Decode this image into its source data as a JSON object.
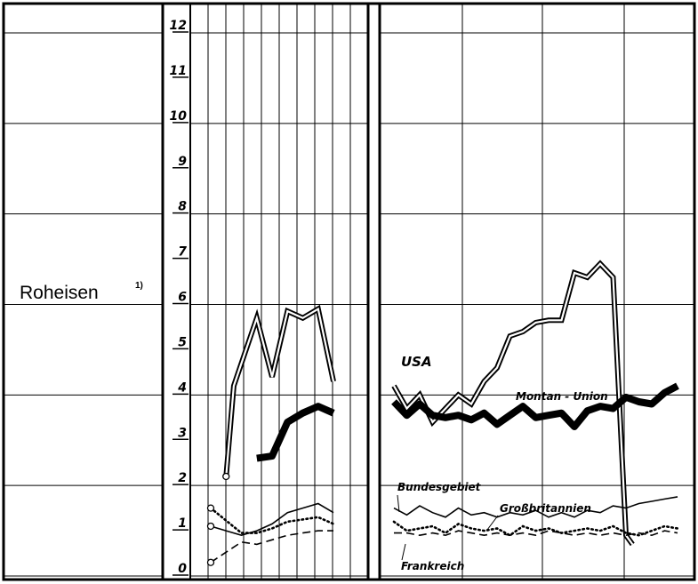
{
  "chart_data": {
    "type": "line",
    "title": "",
    "ylabel": "Roheisen",
    "ylabel_footnote": "1)",
    "xlabel": "",
    "ylim": [
      0,
      12
    ],
    "yticks": [
      "0",
      "1",
      "2",
      "3",
      "4",
      "5",
      "6",
      "7",
      "8",
      "9",
      "10",
      "11",
      "12"
    ],
    "grid": true,
    "panels": [
      {
        "name": "annual",
        "series": [
          {
            "name": "USA",
            "style": "double",
            "points": [
              [
                1.0,
                2.2
              ],
              [
                1.5,
                4.2
              ],
              [
                3.0,
                5.7
              ],
              [
                4.0,
                4.4
              ],
              [
                5.0,
                5.85
              ],
              [
                6.0,
                5.7
              ],
              [
                7.0,
                5.9
              ],
              [
                8.0,
                4.3
              ]
            ]
          },
          {
            "name": "Montan-Union",
            "style": "heavy",
            "points": [
              [
                3.0,
                2.6
              ],
              [
                4.0,
                2.65
              ],
              [
                5.0,
                3.4
              ],
              [
                6.0,
                3.6
              ],
              [
                7.0,
                3.75
              ],
              [
                8.0,
                3.6
              ]
            ]
          },
          {
            "name": "Bundesgebiet",
            "style": "thin",
            "points": [
              [
                0.0,
                1.1
              ],
              [
                2.0,
                0.9
              ],
              [
                3.0,
                1.0
              ],
              [
                4.0,
                1.15
              ],
              [
                5.0,
                1.4
              ],
              [
                6.0,
                1.5
              ],
              [
                7.0,
                1.6
              ],
              [
                8.0,
                1.4
              ]
            ]
          },
          {
            "name": "Großbritannien",
            "style": "dotted",
            "points": [
              [
                0.0,
                1.5
              ],
              [
                2.0,
                0.95
              ],
              [
                3.0,
                0.95
              ],
              [
                4.0,
                1.05
              ],
              [
                5.0,
                1.2
              ],
              [
                6.0,
                1.25
              ],
              [
                7.0,
                1.3
              ],
              [
                8.0,
                1.15
              ]
            ]
          },
          {
            "name": "Frankreich",
            "style": "dashed",
            "points": [
              [
                0.0,
                0.3
              ],
              [
                2.0,
                0.75
              ],
              [
                3.0,
                0.7
              ],
              [
                4.0,
                0.8
              ],
              [
                5.0,
                0.9
              ],
              [
                6.0,
                0.95
              ],
              [
                7.0,
                1.0
              ],
              [
                8.0,
                1.0
              ]
            ]
          }
        ]
      },
      {
        "name": "recent",
        "series": [
          {
            "name": "USA",
            "style": "double",
            "points": [
              [
                0.0,
                4.2
              ],
              [
                1.0,
                3.7
              ],
              [
                2.0,
                4.0
              ],
              [
                3.0,
                3.4
              ],
              [
                4.0,
                3.7
              ],
              [
                5.0,
                4.0
              ],
              [
                6.0,
                3.8
              ],
              [
                7.0,
                4.3
              ],
              [
                8.0,
                4.6
              ],
              [
                9.0,
                5.3
              ],
              [
                10.0,
                5.4
              ],
              [
                11.0,
                5.6
              ],
              [
                12.0,
                5.65
              ],
              [
                13.0,
                5.65
              ],
              [
                14.0,
                6.7
              ],
              [
                15.0,
                6.6
              ],
              [
                16.0,
                6.9
              ],
              [
                17.0,
                6.6
              ],
              [
                18.0,
                0.9
              ],
              [
                18.5,
                0.7
              ]
            ]
          },
          {
            "name": "Montan-Union",
            "style": "heavy",
            "points": [
              [
                0.0,
                3.85
              ],
              [
                1.0,
                3.55
              ],
              [
                2.0,
                3.8
              ],
              [
                3.0,
                3.55
              ],
              [
                4.0,
                3.5
              ],
              [
                5.0,
                3.55
              ],
              [
                6.0,
                3.45
              ],
              [
                7.0,
                3.6
              ],
              [
                8.0,
                3.35
              ],
              [
                9.0,
                3.55
              ],
              [
                10.0,
                3.75
              ],
              [
                11.0,
                3.5
              ],
              [
                12.0,
                3.55
              ],
              [
                13.0,
                3.6
              ],
              [
                14.0,
                3.3
              ],
              [
                15.0,
                3.65
              ],
              [
                16.0,
                3.75
              ],
              [
                17.0,
                3.7
              ],
              [
                18.0,
                3.95
              ],
              [
                19.0,
                3.85
              ],
              [
                20.0,
                3.8
              ],
              [
                21.0,
                4.05
              ],
              [
                22.0,
                4.2
              ]
            ]
          },
          {
            "name": "Bundesgebiet",
            "style": "thin",
            "points": [
              [
                0.0,
                1.5
              ],
              [
                1.0,
                1.35
              ],
              [
                2.0,
                1.55
              ],
              [
                3.0,
                1.4
              ],
              [
                4.0,
                1.3
              ],
              [
                5.0,
                1.5
              ],
              [
                6.0,
                1.35
              ],
              [
                7.0,
                1.4
              ],
              [
                8.0,
                1.3
              ],
              [
                9.0,
                1.4
              ],
              [
                10.0,
                1.35
              ],
              [
                11.0,
                1.45
              ],
              [
                12.0,
                1.3
              ],
              [
                13.0,
                1.4
              ],
              [
                14.0,
                1.3
              ],
              [
                15.0,
                1.45
              ],
              [
                16.0,
                1.4
              ],
              [
                17.0,
                1.55
              ],
              [
                18.0,
                1.5
              ],
              [
                19.0,
                1.6
              ],
              [
                20.0,
                1.65
              ],
              [
                21.0,
                1.7
              ],
              [
                22.0,
                1.75
              ]
            ]
          },
          {
            "name": "Großbritannien",
            "style": "dotted",
            "points": [
              [
                0.0,
                1.2
              ],
              [
                1.0,
                1.0
              ],
              [
                2.0,
                1.05
              ],
              [
                3.0,
                1.1
              ],
              [
                4.0,
                0.95
              ],
              [
                5.0,
                1.15
              ],
              [
                6.0,
                1.05
              ],
              [
                7.0,
                1.0
              ],
              [
                8.0,
                1.05
              ],
              [
                9.0,
                0.9
              ],
              [
                10.0,
                1.1
              ],
              [
                11.0,
                1.0
              ],
              [
                12.0,
                1.05
              ],
              [
                13.0,
                0.95
              ],
              [
                14.0,
                1.0
              ],
              [
                15.0,
                1.05
              ],
              [
                16.0,
                1.0
              ],
              [
                17.0,
                1.1
              ],
              [
                18.0,
                0.95
              ],
              [
                19.0,
                0.9
              ],
              [
                20.0,
                1.0
              ],
              [
                21.0,
                1.1
              ],
              [
                22.0,
                1.05
              ]
            ]
          },
          {
            "name": "Frankreich",
            "style": "dashed",
            "points": [
              [
                0.0,
                0.95
              ],
              [
                1.0,
                0.95
              ],
              [
                2.0,
                0.9
              ],
              [
                3.0,
                0.95
              ],
              [
                4.0,
                0.9
              ],
              [
                5.0,
                1.0
              ],
              [
                6.0,
                0.95
              ],
              [
                7.0,
                0.9
              ],
              [
                8.0,
                0.95
              ],
              [
                9.0,
                0.9
              ],
              [
                10.0,
                0.95
              ],
              [
                11.0,
                0.9
              ],
              [
                12.0,
                1.0
              ],
              [
                13.0,
                0.95
              ],
              [
                14.0,
                0.9
              ],
              [
                15.0,
                0.95
              ],
              [
                16.0,
                0.9
              ],
              [
                17.0,
                0.95
              ],
              [
                18.0,
                0.9
              ],
              [
                19.0,
                0.95
              ],
              [
                20.0,
                0.9
              ],
              [
                21.0,
                1.0
              ],
              [
                22.0,
                0.95
              ]
            ]
          }
        ]
      }
    ],
    "annotations": [
      {
        "text": "USA",
        "series": "USA"
      },
      {
        "text": "Montan - Union",
        "series": "Montan-Union"
      },
      {
        "text": "Bundesgebiet",
        "series": "Bundesgebiet"
      },
      {
        "text": "Großbritannien",
        "series": "Großbritannien"
      },
      {
        "text": "Frankreich",
        "series": "Frankreich"
      }
    ]
  }
}
